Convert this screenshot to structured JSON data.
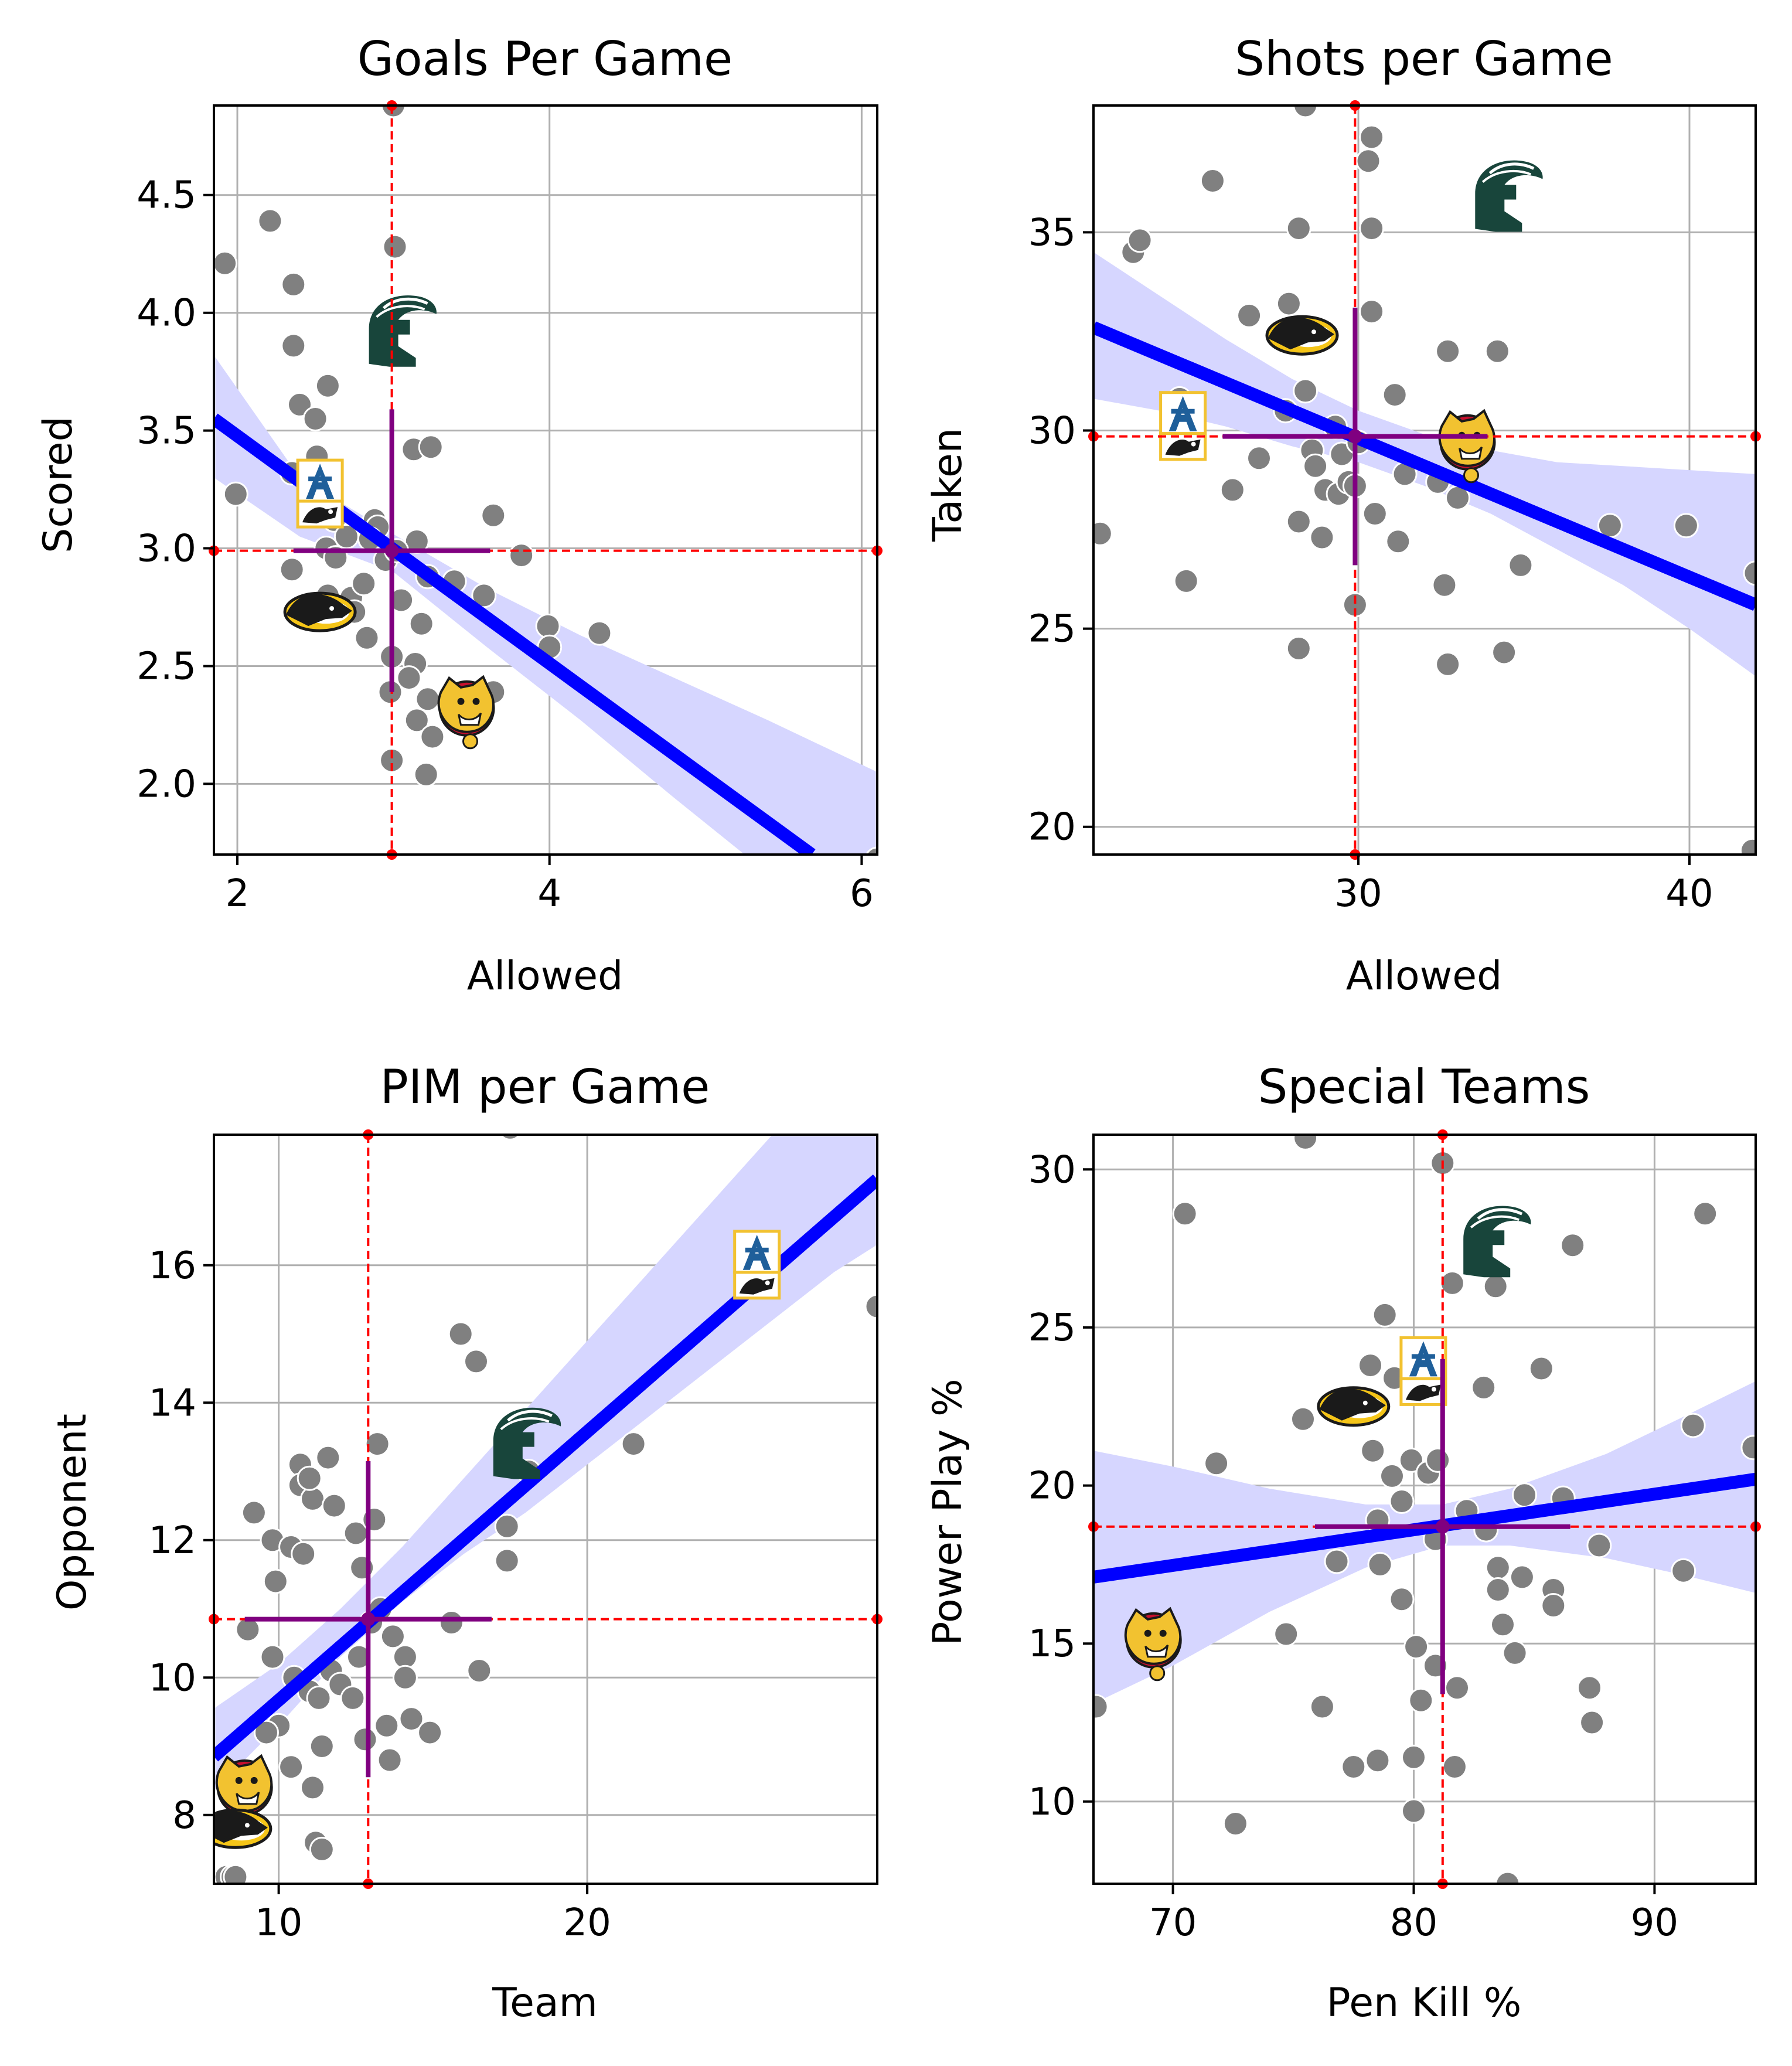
{
  "colors": {
    "point": "#808080",
    "regression_line": "#0000ff",
    "confidence_band": "#d6d6ff",
    "mean_cross": "#800080",
    "mean_guides": "#ff0000",
    "grid": "#b0b0b0",
    "msu_logo": "#18453b",
    "ferris_logo": "#f2c230",
    "huskies_logo": "#f5c518",
    "af_logo": "#1f5f9a"
  },
  "chart_data": [
    {
      "type": "scatter",
      "title": "Goals Per Game",
      "xlabel": "Allowed",
      "ylabel": "Scored",
      "xlim": [
        1.85,
        6.1
      ],
      "ylim": [
        1.7,
        4.88
      ],
      "xticks": [
        2,
        4,
        6
      ],
      "yticks": [
        2.0,
        2.5,
        3.0,
        3.5,
        4.0,
        4.5
      ],
      "xtick_labels": [
        "2",
        "4",
        "6"
      ],
      "ytick_labels": [
        "2.0",
        "2.5",
        "3.0",
        "3.5",
        "4.0",
        "4.5"
      ],
      "grid": true,
      "mean": {
        "x": 2.99,
        "y": 2.99,
        "x_err": 0.63,
        "y_err": 0.6
      },
      "regression": {
        "x": [
          1.85,
          5.68
        ],
        "y": [
          3.55,
          1.7
        ]
      },
      "confidence_band": {
        "x": [
          1.85,
          2.4,
          3.0,
          3.6,
          4.2,
          4.8,
          5.4,
          6.1
        ],
        "lower": [
          3.3,
          3.05,
          2.9,
          2.58,
          2.27,
          1.94,
          1.62,
          1.25
        ],
        "upper": [
          3.82,
          3.3,
          3.06,
          2.83,
          2.63,
          2.45,
          2.27,
          2.05
        ]
      },
      "points": [
        [
          1.92,
          4.21
        ],
        [
          2.21,
          4.39
        ],
        [
          2.36,
          4.12
        ],
        [
          2.36,
          3.86
        ],
        [
          2.58,
          3.69
        ],
        [
          2.4,
          3.61
        ],
        [
          2.5,
          3.55
        ],
        [
          2.51,
          3.39
        ],
        [
          2.35,
          3.32
        ],
        [
          2.47,
          3.31
        ],
        [
          1.99,
          3.23
        ],
        [
          2.62,
          3.12
        ],
        [
          2.88,
          3.12
        ],
        [
          2.9,
          3.09
        ],
        [
          2.57,
          3.0
        ],
        [
          2.7,
          3.05
        ],
        [
          2.85,
          3.04
        ],
        [
          3.15,
          3.03
        ],
        [
          2.63,
          2.96
        ],
        [
          2.35,
          2.91
        ],
        [
          2.95,
          2.95
        ],
        [
          2.58,
          2.8
        ],
        [
          2.73,
          2.79
        ],
        [
          2.81,
          2.85
        ],
        [
          2.75,
          2.73
        ],
        [
          2.83,
          2.62
        ],
        [
          3.02,
          2.99
        ],
        [
          3.22,
          2.88
        ],
        [
          3.39,
          2.86
        ],
        [
          3.18,
          2.68
        ],
        [
          3.05,
          2.78
        ],
        [
          2.99,
          2.54
        ],
        [
          3.14,
          2.51
        ],
        [
          3.1,
          2.45
        ],
        [
          2.98,
          2.39
        ],
        [
          3.22,
          2.36
        ],
        [
          3.15,
          2.27
        ],
        [
          3.25,
          2.2
        ],
        [
          3.21,
          2.04
        ],
        [
          2.99,
          2.1
        ],
        [
          3.01,
          4.28
        ],
        [
          3.13,
          3.42
        ],
        [
          3.24,
          3.43
        ],
        [
          3.64,
          3.14
        ],
        [
          3.58,
          2.8
        ],
        [
          3.64,
          2.39
        ],
        [
          3.82,
          2.97
        ],
        [
          3.99,
          2.67
        ],
        [
          4.0,
          2.58
        ],
        [
          4.32,
          2.64
        ],
        [
          3.0,
          4.88
        ],
        [
          6.1,
          1.68
        ]
      ],
      "logos": [
        {
          "team": "Michigan State",
          "icon": "spartan-helmet-icon",
          "x": 3.05,
          "y": 3.92
        },
        {
          "team": "Air Force",
          "icon": "af-logo-icon",
          "x": 2.53,
          "y": 3.23
        },
        {
          "team": "Michigan Tech",
          "icon": "husky-logo-icon",
          "x": 2.53,
          "y": 2.73
        },
        {
          "team": "Ferris State",
          "icon": "bulldog-logo-icon",
          "x": 3.47,
          "y": 2.32
        }
      ]
    },
    {
      "type": "scatter",
      "title": "Shots per Game",
      "xlabel": "Allowed",
      "ylabel": "Taken",
      "xlim": [
        22.0,
        42.0
      ],
      "ylim": [
        19.3,
        38.2
      ],
      "xticks": [
        30,
        40
      ],
      "yticks": [
        20,
        25,
        30,
        35
      ],
      "xtick_labels": [
        "30",
        "40"
      ],
      "ytick_labels": [
        "20",
        "25",
        "30",
        "35"
      ],
      "grid": true,
      "mean": {
        "x": 29.9,
        "y": 29.85,
        "x_err": 4.0,
        "y_err": 3.25
      },
      "regression": {
        "x": [
          22.0,
          42.0
        ],
        "y": [
          32.6,
          25.6
        ]
      },
      "confidence_band": {
        "x": [
          22.0,
          24.0,
          26.0,
          28.0,
          30.0,
          32.0,
          34.0,
          36.0,
          38.0,
          40.0,
          42.0
        ],
        "lower": [
          30.8,
          30.5,
          30.1,
          29.6,
          29.2,
          28.6,
          27.9,
          27.0,
          26.1,
          25.0,
          23.8
        ],
        "upper": [
          34.5,
          33.4,
          32.3,
          31.3,
          30.5,
          29.9,
          29.5,
          29.2,
          29.1,
          29.0,
          28.9
        ]
      },
      "points": [
        [
          22.2,
          27.4
        ],
        [
          23.2,
          34.5
        ],
        [
          23.4,
          34.8
        ],
        [
          25.6,
          36.3
        ],
        [
          26.7,
          32.9
        ],
        [
          24.6,
          30.8
        ],
        [
          24.8,
          26.2
        ],
        [
          26.2,
          28.5
        ],
        [
          27.0,
          29.3
        ],
        [
          28.4,
          38.2
        ],
        [
          28.2,
          35.1
        ],
        [
          27.9,
          33.2
        ],
        [
          28.4,
          31.0
        ],
        [
          27.8,
          30.5
        ],
        [
          28.6,
          29.5
        ],
        [
          28.7,
          29.1
        ],
        [
          29.0,
          28.5
        ],
        [
          29.4,
          28.4
        ],
        [
          29.7,
          28.7
        ],
        [
          29.3,
          30.1
        ],
        [
          29.5,
          29.4
        ],
        [
          30.0,
          29.7
        ],
        [
          29.9,
          28.6
        ],
        [
          28.2,
          27.7
        ],
        [
          28.9,
          27.3
        ],
        [
          28.2,
          24.5
        ],
        [
          29.9,
          25.6
        ],
        [
          30.4,
          37.4
        ],
        [
          30.3,
          36.8
        ],
        [
          30.4,
          35.1
        ],
        [
          30.4,
          33.0
        ],
        [
          30.5,
          27.9
        ],
        [
          31.1,
          30.9
        ],
        [
          31.2,
          27.2
        ],
        [
          31.4,
          28.9
        ],
        [
          32.4,
          28.7
        ],
        [
          32.7,
          32.0
        ],
        [
          32.6,
          26.1
        ],
        [
          32.7,
          24.1
        ],
        [
          33.1,
          30.1
        ],
        [
          34.2,
          32.0
        ],
        [
          34.4,
          24.4
        ],
        [
          34.9,
          26.6
        ],
        [
          33.0,
          28.3
        ],
        [
          37.6,
          27.6
        ],
        [
          39.9,
          27.6
        ],
        [
          42.0,
          26.4
        ],
        [
          41.9,
          19.4
        ]
      ],
      "logos": [
        {
          "team": "Michigan State",
          "icon": "spartan-helmet-icon",
          "x": 34.5,
          "y": 35.9
        },
        {
          "team": "Michigan Tech",
          "icon": "husky-logo-icon",
          "x": 28.3,
          "y": 32.4
        },
        {
          "team": "Air Force",
          "icon": "af-logo-icon",
          "x": 24.7,
          "y": 30.1
        },
        {
          "team": "Ferris State",
          "icon": "bulldog-logo-icon",
          "x": 33.3,
          "y": 29.7
        }
      ]
    },
    {
      "type": "scatter",
      "title": "PIM per Game",
      "xlabel": "Team",
      "ylabel": "Opponent",
      "xlim": [
        7.9,
        29.4
      ],
      "ylim": [
        7.0,
        17.9
      ],
      "xticks": [
        10,
        20
      ],
      "yticks": [
        8,
        10,
        12,
        14,
        16
      ],
      "xtick_labels": [
        "10",
        "20"
      ],
      "ytick_labels": [
        "8",
        "10",
        "12",
        "14",
        "16"
      ],
      "grid": true,
      "mean": {
        "x": 12.9,
        "y": 10.85,
        "x_err": 4.0,
        "y_err": 2.3
      },
      "regression": {
        "x": [
          7.9,
          29.4
        ],
        "y": [
          8.85,
          17.25
        ]
      },
      "confidence_band": {
        "x": [
          7.9,
          10.0,
          12.0,
          14.0,
          16.0,
          18.0,
          20.0,
          22.0,
          24.0,
          26.0,
          28.0,
          29.4
        ],
        "lower": [
          8.35,
          9.3,
          10.3,
          11.1,
          11.8,
          12.4,
          13.1,
          13.8,
          14.5,
          15.2,
          15.9,
          16.3
        ],
        "upper": [
          9.55,
          10.2,
          11.0,
          11.9,
          12.9,
          13.9,
          14.9,
          15.9,
          16.9,
          17.9,
          18.9,
          19.5
        ]
      },
      "points": [
        [
          9.2,
          12.4
        ],
        [
          9.8,
          12.0
        ],
        [
          9.9,
          11.4
        ],
        [
          10.4,
          11.9
        ],
        [
          10.7,
          13.1
        ],
        [
          10.7,
          12.8
        ],
        [
          11.1,
          12.6
        ],
        [
          10.8,
          11.8
        ],
        [
          11.6,
          13.2
        ],
        [
          11.8,
          12.5
        ],
        [
          12.5,
          12.1
        ],
        [
          12.7,
          11.6
        ],
        [
          13.1,
          12.3
        ],
        [
          13.2,
          13.4
        ],
        [
          11.0,
          12.9
        ],
        [
          9.0,
          10.7
        ],
        [
          9.8,
          10.3
        ],
        [
          10.5,
          10.0
        ],
        [
          11.0,
          9.8
        ],
        [
          11.3,
          9.7
        ],
        [
          11.7,
          10.1
        ],
        [
          12.0,
          9.9
        ],
        [
          12.4,
          9.7
        ],
        [
          12.6,
          10.3
        ],
        [
          13.0,
          10.8
        ],
        [
          13.3,
          11.0
        ],
        [
          13.7,
          10.6
        ],
        [
          14.1,
          10.3
        ],
        [
          14.1,
          10.0
        ],
        [
          13.5,
          9.3
        ],
        [
          13.6,
          8.8
        ],
        [
          14.3,
          9.4
        ],
        [
          14.9,
          9.2
        ],
        [
          12.8,
          9.1
        ],
        [
          11.4,
          9.0
        ],
        [
          10.4,
          8.7
        ],
        [
          10.0,
          9.3
        ],
        [
          9.6,
          9.2
        ],
        [
          11.1,
          8.4
        ],
        [
          11.2,
          7.6
        ],
        [
          11.4,
          7.5
        ],
        [
          15.6,
          10.8
        ],
        [
          15.9,
          15.0
        ],
        [
          16.4,
          14.6
        ],
        [
          16.5,
          10.1
        ],
        [
          17.4,
          11.7
        ],
        [
          17.4,
          12.2
        ],
        [
          18.1,
          13.0
        ],
        [
          21.5,
          13.4
        ],
        [
          17.5,
          18.0
        ],
        [
          29.4,
          15.4
        ],
        [
          8.3,
          7.1
        ],
        [
          8.5,
          7.1
        ],
        [
          8.6,
          7.1
        ]
      ],
      "logos": [
        {
          "team": "Air Force",
          "icon": "af-logo-icon",
          "x": 25.5,
          "y": 16.0
        },
        {
          "team": "Michigan State",
          "icon": "spartan-helmet-icon",
          "x": 18.0,
          "y": 13.4
        },
        {
          "team": "Ferris State",
          "icon": "bulldog-logo-icon",
          "x": 8.9,
          "y": 8.4
        },
        {
          "team": "Michigan Tech",
          "icon": "husky-logo-icon",
          "x": 8.6,
          "y": 7.8
        }
      ]
    },
    {
      "type": "scatter",
      "title": "Special Teams",
      "xlabel": "Pen Kill %",
      "ylabel": "Power Play %",
      "xlim": [
        66.7,
        94.2
      ],
      "ylim": [
        7.4,
        31.1
      ],
      "xticks": [
        70,
        80,
        90
      ],
      "yticks": [
        10,
        15,
        20,
        25,
        30
      ],
      "xtick_labels": [
        "70",
        "80",
        "90"
      ],
      "ytick_labels": [
        "10",
        "15",
        "20",
        "25",
        "30"
      ],
      "grid": true,
      "mean": {
        "x": 81.2,
        "y": 18.7,
        "x_err": 5.3,
        "y_err": 5.3
      },
      "regression": {
        "x": [
          66.7,
          94.2
        ],
        "y": [
          17.1,
          20.2
        ]
      },
      "confidence_band": {
        "x": [
          66.7,
          70.0,
          74.0,
          78.0,
          81.2,
          84.0,
          88.0,
          91.0,
          94.2
        ],
        "lower": [
          13.1,
          14.3,
          16.0,
          17.4,
          18.1,
          18.1,
          17.7,
          17.2,
          16.6
        ],
        "upper": [
          21.1,
          20.6,
          19.9,
          19.4,
          19.4,
          19.9,
          21.0,
          22.1,
          23.3
        ]
      },
      "points": [
        [
          66.8,
          13.0
        ],
        [
          70.5,
          28.6
        ],
        [
          71.8,
          20.7
        ],
        [
          72.6,
          9.3
        ],
        [
          74.7,
          15.3
        ],
        [
          75.4,
          22.1
        ],
        [
          75.5,
          31.0
        ],
        [
          76.2,
          13.0
        ],
        [
          76.8,
          17.6
        ],
        [
          77.5,
          11.1
        ],
        [
          78.5,
          11.3
        ],
        [
          78.2,
          23.8
        ],
        [
          78.3,
          21.1
        ],
        [
          78.5,
          18.9
        ],
        [
          78.6,
          17.5
        ],
        [
          78.8,
          25.4
        ],
        [
          79.1,
          20.3
        ],
        [
          79.2,
          23.4
        ],
        [
          79.5,
          16.4
        ],
        [
          79.5,
          19.5
        ],
        [
          79.9,
          20.8
        ],
        [
          80.0,
          11.4
        ],
        [
          80.0,
          9.7
        ],
        [
          80.1,
          14.9
        ],
        [
          80.3,
          13.2
        ],
        [
          80.6,
          20.4
        ],
        [
          80.9,
          18.3
        ],
        [
          80.9,
          14.3
        ],
        [
          81.0,
          20.8
        ],
        [
          81.2,
          30.2
        ],
        [
          81.7,
          11.1
        ],
        [
          81.6,
          26.4
        ],
        [
          81.8,
          13.6
        ],
        [
          82.2,
          19.2
        ],
        [
          83.0,
          18.6
        ],
        [
          82.9,
          23.1
        ],
        [
          83.4,
          26.3
        ],
        [
          83.5,
          17.4
        ],
        [
          83.5,
          16.7
        ],
        [
          83.7,
          15.6
        ],
        [
          83.9,
          7.4
        ],
        [
          84.2,
          14.7
        ],
        [
          84.5,
          17.1
        ],
        [
          84.6,
          19.7
        ],
        [
          85.3,
          23.7
        ],
        [
          85.8,
          16.7
        ],
        [
          85.8,
          16.2
        ],
        [
          86.6,
          27.6
        ],
        [
          86.2,
          19.6
        ],
        [
          87.7,
          18.1
        ],
        [
          87.3,
          13.6
        ],
        [
          87.4,
          12.5
        ],
        [
          91.2,
          17.3
        ],
        [
          91.6,
          21.9
        ],
        [
          92.1,
          28.6
        ],
        [
          94.1,
          21.2
        ]
      ],
      "logos": [
        {
          "team": "Michigan State",
          "icon": "spartan-helmet-icon",
          "x": 83.4,
          "y": 27.7
        },
        {
          "team": "Air Force",
          "icon": "af-logo-icon",
          "x": 80.4,
          "y": 23.6
        },
        {
          "team": "Michigan Tech",
          "icon": "husky-logo-icon",
          "x": 77.5,
          "y": 22.5
        },
        {
          "team": "Ferris State",
          "icon": "bulldog-logo-icon",
          "x": 69.2,
          "y": 15.1
        }
      ]
    }
  ]
}
